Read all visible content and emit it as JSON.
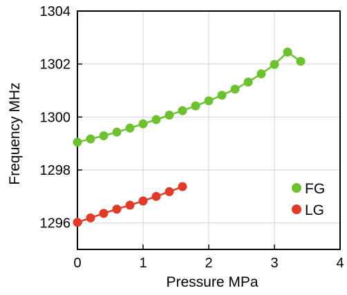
{
  "chart_data": {
    "type": "scatter",
    "title": "",
    "xlabel": "Pressure  MPa",
    "ylabel": "Frequency  MHz",
    "xlim": [
      0,
      4
    ],
    "ylim": [
      1295,
      1304
    ],
    "x_ticks": [
      0,
      1,
      2,
      3,
      4
    ],
    "y_ticks": [
      1296,
      1298,
      1300,
      1302,
      1304
    ],
    "x_tick_labels": [
      "0",
      "1",
      "2",
      "3",
      "4"
    ],
    "y_tick_labels": [
      "1296",
      "1298",
      "1300",
      "1302",
      "1304"
    ],
    "grid": true,
    "legend_position": "bottom-right",
    "series": [
      {
        "name": "FG",
        "color": "#6cc22e",
        "connected": true,
        "x": [
          0,
          0.2,
          0.4,
          0.6,
          0.8,
          1.0,
          1.2,
          1.4,
          1.6,
          1.8,
          2.0,
          2.2,
          2.4,
          2.6,
          2.8,
          3.0,
          3.2,
          3.4
        ],
        "y": [
          1299.05,
          1299.17,
          1299.29,
          1299.43,
          1299.58,
          1299.74,
          1299.9,
          1300.07,
          1300.24,
          1300.42,
          1300.61,
          1300.82,
          1301.05,
          1301.32,
          1301.63,
          1301.98,
          1302.45,
          1302.1
        ]
      },
      {
        "name": "LG",
        "color": "#e13a26",
        "connected": true,
        "x": [
          0,
          0.2,
          0.4,
          0.6,
          0.8,
          1.0,
          1.2,
          1.4,
          1.6
        ],
        "y": [
          1296.02,
          1296.19,
          1296.36,
          1296.52,
          1296.67,
          1296.83,
          1297.0,
          1297.18,
          1297.37
        ]
      }
    ]
  }
}
